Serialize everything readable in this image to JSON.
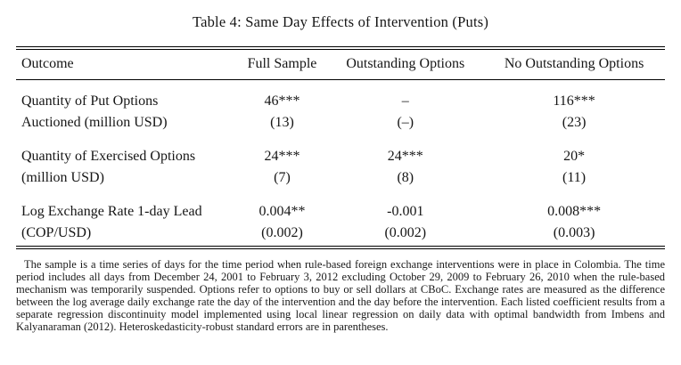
{
  "title": "Table 4: Same Day Effects of Intervention (Puts)",
  "table": {
    "columns": [
      "Outcome",
      "Full Sample",
      "Outstanding Options",
      "No Outstanding Options"
    ],
    "rows": [
      {
        "label": [
          "Quantity of Put Options",
          "Auctioned (million USD)"
        ],
        "full_sample": [
          "46***",
          "(13)"
        ],
        "outstanding_options": [
          "–",
          "(–)"
        ],
        "no_outstanding_options": [
          "116***",
          "(23)"
        ]
      },
      {
        "label": [
          "Quantity of Exercised Options",
          "(million USD)"
        ],
        "full_sample": [
          "24***",
          "(7)"
        ],
        "outstanding_options": [
          "24***",
          "(8)"
        ],
        "no_outstanding_options": [
          "20*",
          "(11)"
        ]
      },
      {
        "label": [
          "Log Exchange Rate 1-day Lead",
          "(COP/USD)"
        ],
        "full_sample": [
          "0.004**",
          "(0.002)"
        ],
        "outstanding_options": [
          "-0.001",
          "(0.002)"
        ],
        "no_outstanding_options": [
          "0.008***",
          "(0.003)"
        ]
      }
    ]
  },
  "note": "The sample is a time series of days for the time period when rule-based foreign exchange interventions were in place in Colombia. The time period includes all days from December 24, 2001 to February 3, 2012 excluding October 29, 2009 to February 26, 2010 when the rule-based mechanism was temporarily suspended. Options refer to options to buy or sell dollars at CBoC. Exchange rates are measured as the difference between the log average daily exchange rate the day of the intervention and the day before the intervention. Each listed coefficient results from a separate regression discontinuity model implemented using local linear regression on daily data with optimal bandwidth from Imbens and Kalyanaraman (2012). Heteroskedasticity-robust standard errors are in parentheses."
}
